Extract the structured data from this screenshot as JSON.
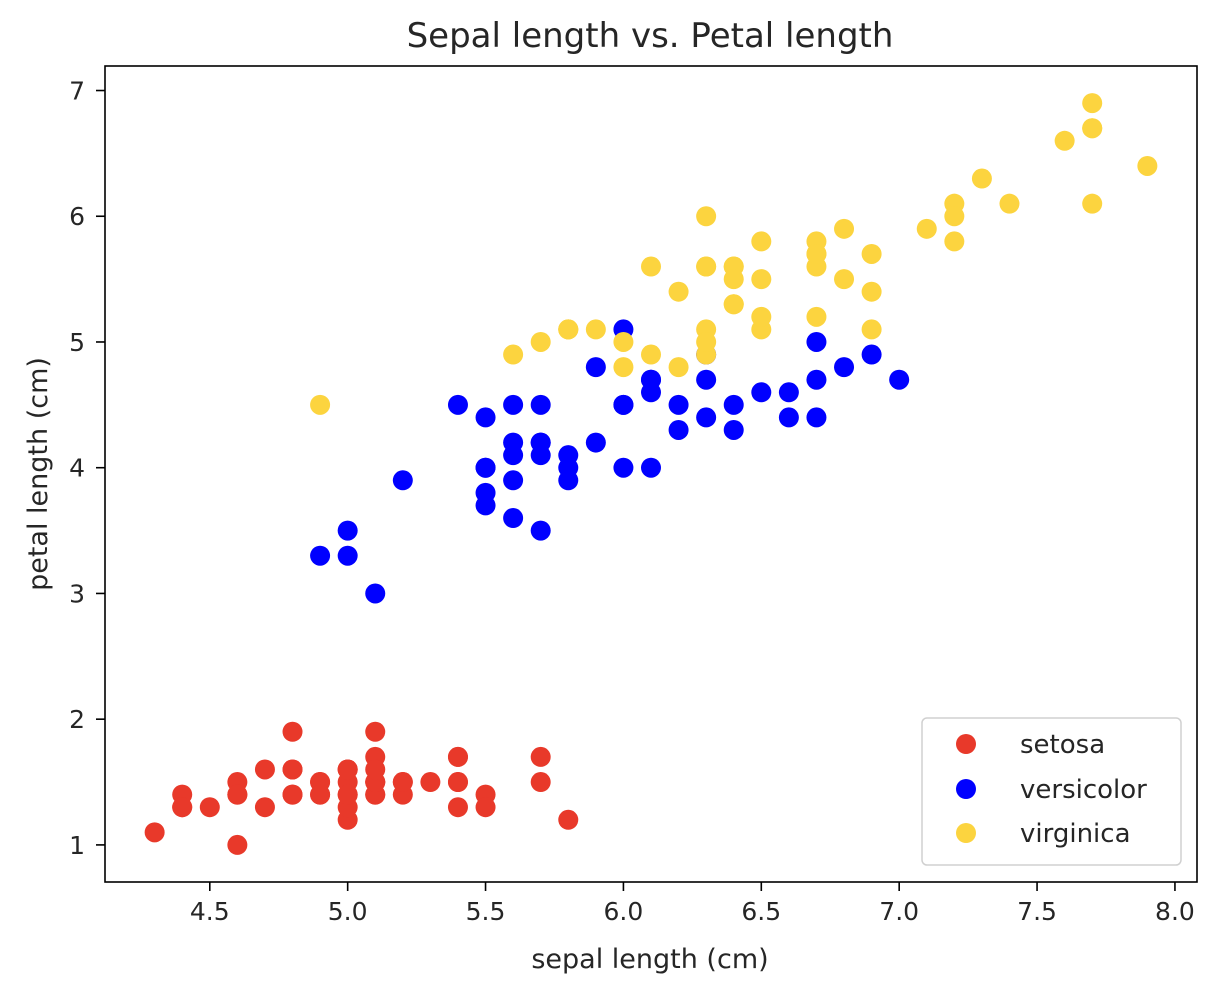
{
  "chart_data": {
    "type": "scatter",
    "title": "Sepal length vs. Petal length",
    "xlabel": "sepal length (cm)",
    "ylabel": "petal length (cm)",
    "xlim": [
      4.12,
      8.08
    ],
    "ylim": [
      0.705,
      7.195
    ],
    "xticks": [
      4.5,
      5.0,
      5.5,
      6.0,
      6.5,
      7.0,
      7.5,
      8.0
    ],
    "xtick_labels": [
      "4.5",
      "5.0",
      "5.5",
      "6.0",
      "6.5",
      "7.0",
      "7.5",
      "8.0"
    ],
    "yticks": [
      1,
      2,
      3,
      4,
      5,
      6,
      7
    ],
    "ytick_labels": [
      "1",
      "2",
      "3",
      "4",
      "5",
      "6",
      "7"
    ],
    "grid": false,
    "legend_position": "lower-right",
    "series": [
      {
        "name": "setosa",
        "color": "#e8392a",
        "x": [
          5.1,
          4.9,
          4.7,
          4.6,
          5.0,
          5.4,
          4.6,
          5.0,
          4.4,
          4.9,
          5.4,
          4.8,
          4.8,
          4.3,
          5.8,
          5.7,
          5.4,
          5.1,
          5.7,
          5.1,
          5.4,
          5.1,
          4.6,
          5.1,
          4.8,
          5.0,
          5.0,
          5.2,
          5.2,
          4.7,
          4.8,
          5.4,
          5.2,
          5.5,
          4.9,
          5.0,
          5.5,
          4.9,
          4.4,
          5.1,
          5.0,
          4.5,
          4.4,
          5.0,
          5.1,
          4.8,
          5.1,
          4.6,
          5.3,
          5.0
        ],
        "y": [
          1.4,
          1.4,
          1.3,
          1.5,
          1.4,
          1.7,
          1.4,
          1.5,
          1.4,
          1.5,
          1.5,
          1.6,
          1.4,
          1.1,
          1.2,
          1.5,
          1.3,
          1.4,
          1.7,
          1.5,
          1.7,
          1.5,
          1.0,
          1.7,
          1.9,
          1.6,
          1.6,
          1.5,
          1.4,
          1.6,
          1.6,
          1.5,
          1.5,
          1.4,
          1.5,
          1.2,
          1.3,
          1.4,
          1.3,
          1.5,
          1.3,
          1.3,
          1.3,
          1.6,
          1.9,
          1.4,
          1.6,
          1.4,
          1.5,
          1.4
        ]
      },
      {
        "name": "versicolor",
        "color": "#0000ff",
        "x": [
          7.0,
          6.4,
          6.9,
          5.5,
          6.5,
          5.7,
          6.3,
          4.9,
          6.6,
          5.2,
          5.0,
          5.9,
          6.0,
          6.1,
          5.6,
          6.7,
          5.6,
          5.8,
          6.2,
          5.6,
          5.9,
          6.1,
          6.3,
          6.1,
          6.4,
          6.6,
          6.8,
          6.7,
          6.0,
          5.7,
          5.5,
          5.5,
          5.8,
          6.0,
          5.4,
          6.0,
          6.7,
          6.3,
          5.6,
          5.5,
          5.5,
          6.1,
          5.8,
          5.0,
          5.6,
          5.7,
          5.7,
          6.2,
          5.1,
          5.7
        ],
        "y": [
          4.7,
          4.5,
          4.9,
          4.0,
          4.6,
          4.5,
          4.7,
          3.3,
          4.6,
          3.9,
          3.5,
          4.2,
          4.0,
          4.7,
          3.6,
          4.4,
          4.5,
          4.1,
          4.5,
          3.9,
          4.8,
          4.0,
          4.9,
          4.7,
          4.3,
          4.4,
          4.8,
          5.0,
          4.5,
          3.5,
          3.8,
          3.7,
          3.9,
          5.1,
          4.5,
          4.5,
          4.7,
          4.4,
          4.1,
          4.0,
          4.4,
          4.6,
          4.0,
          3.3,
          4.2,
          4.2,
          4.2,
          4.3,
          3.0,
          4.1
        ]
      },
      {
        "name": "virginica",
        "color": "#fcd43f",
        "x": [
          6.3,
          5.8,
          7.1,
          6.3,
          6.5,
          7.6,
          4.9,
          7.3,
          6.7,
          7.2,
          6.5,
          6.4,
          6.8,
          5.7,
          5.8,
          6.4,
          6.5,
          7.7,
          7.7,
          6.0,
          6.9,
          5.6,
          7.7,
          6.3,
          6.7,
          7.2,
          6.2,
          6.1,
          6.4,
          7.2,
          7.4,
          7.9,
          6.4,
          6.3,
          6.1,
          7.7,
          6.3,
          6.4,
          6.0,
          6.9,
          6.7,
          6.9,
          5.8,
          6.8,
          6.7,
          6.7,
          6.3,
          6.5,
          6.2,
          5.9
        ],
        "y": [
          6.0,
          5.1,
          5.9,
          5.6,
          5.8,
          6.6,
          4.5,
          6.3,
          5.8,
          6.1,
          5.1,
          5.3,
          5.5,
          5.0,
          5.1,
          5.3,
          5.5,
          6.7,
          6.9,
          5.0,
          5.7,
          4.9,
          6.7,
          4.9,
          5.7,
          6.0,
          4.8,
          4.9,
          5.6,
          5.8,
          6.1,
          6.4,
          5.6,
          5.1,
          5.6,
          6.1,
          5.6,
          5.5,
          4.8,
          5.4,
          5.6,
          5.1,
          5.1,
          5.9,
          5.7,
          5.2,
          5.0,
          5.2,
          5.4,
          5.1
        ]
      }
    ]
  }
}
